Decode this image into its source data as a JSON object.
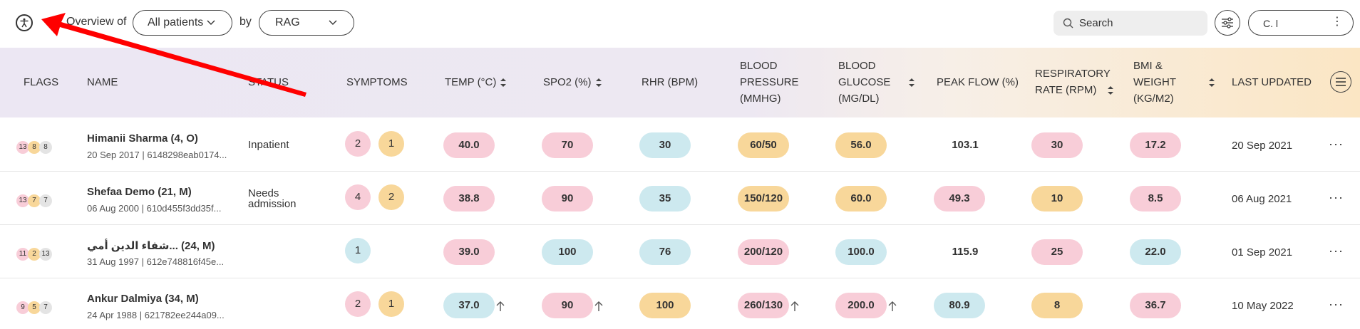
{
  "toolbar": {
    "overview_label": "Overview of",
    "patients_select": "All patients",
    "by_label": "by",
    "rag_select": "RAG",
    "search_placeholder": "Search",
    "user_label": "C. l"
  },
  "columns": {
    "flags": "FLAGS",
    "name": "NAME",
    "status": "STATUS",
    "symptoms": "SYMPTOMS",
    "temp": "TEMP (°C)",
    "spo2": "SPO2 (%)",
    "rhr": "RHR (BPM)",
    "bp_1": "BLOOD",
    "bp_2": "PRESSURE",
    "bp_3": "(MMHG)",
    "bg_1": "BLOOD",
    "bg_2": "GLUCOSE",
    "bg_3": "(MG/DL)",
    "peak": "PEAK FLOW (%)",
    "rr_1": "RESPIRATORY",
    "rr_2": "RATE (RPM)",
    "bmi_1": "BMI &",
    "bmi_2": "WEIGHT",
    "bmi_3": "(KG/M2)",
    "updated": "LAST UPDATED"
  },
  "rows": [
    {
      "flags": [
        "13",
        "8",
        "8"
      ],
      "name": "Himanii Sharma (4, O)",
      "sub": "20 Sep 2017 | 6148298eab0174...",
      "status": "Inpatient",
      "symptoms": [
        "2",
        "1"
      ],
      "temp": "40.0",
      "spo2": "70",
      "rhr": "30",
      "bp": "60/50",
      "bg": "56.0",
      "peak": "103.1",
      "rr": "30",
      "bmi": "17.2",
      "updated": "20 Sep 2021"
    },
    {
      "flags": [
        "13",
        "7",
        "7"
      ],
      "name": "Shefaa Demo (21, M)",
      "sub": "06 Aug 2000 | 610d455f3dd35f...",
      "status_1": "Needs",
      "status_2": "admission",
      "symptoms": [
        "4",
        "2"
      ],
      "temp": "38.8",
      "spo2": "90",
      "rhr": "35",
      "bp": "150/120",
      "bg": "60.0",
      "peak": "49.3",
      "rr": "10",
      "bmi": "8.5",
      "updated": "06 Aug 2021"
    },
    {
      "flags": [
        "11",
        "2",
        "13"
      ],
      "name": "شفاء الدين أمي... (24, M)",
      "sub": "31 Aug 1997 | 612e748816f45e...",
      "status": "",
      "symptoms": [
        "1"
      ],
      "temp": "39.0",
      "spo2": "100",
      "rhr": "76",
      "bp": "200/120",
      "bg": "100.0",
      "peak": "115.9",
      "rr": "25",
      "bmi": "22.0",
      "updated": "01 Sep 2021"
    },
    {
      "flags": [
        "9",
        "5",
        "7"
      ],
      "name": "Ankur Dalmiya (34, M)",
      "sub": "24 Apr 1988 | 621782ee244a09...",
      "status": "",
      "symptoms": [
        "2",
        "1"
      ],
      "temp": "37.0",
      "spo2": "90",
      "rhr": "100",
      "bp": "260/130",
      "bg": "200.0",
      "peak": "80.9",
      "rr": "8",
      "bmi": "36.7",
      "updated": "10 May 2022"
    }
  ],
  "row_menu": "···",
  "colors": {
    "red_pill": "#f8cdd8",
    "amber_pill": "#f8d79a",
    "blue_pill": "#cde9ef",
    "annotation_arrow": "#ff0000"
  }
}
